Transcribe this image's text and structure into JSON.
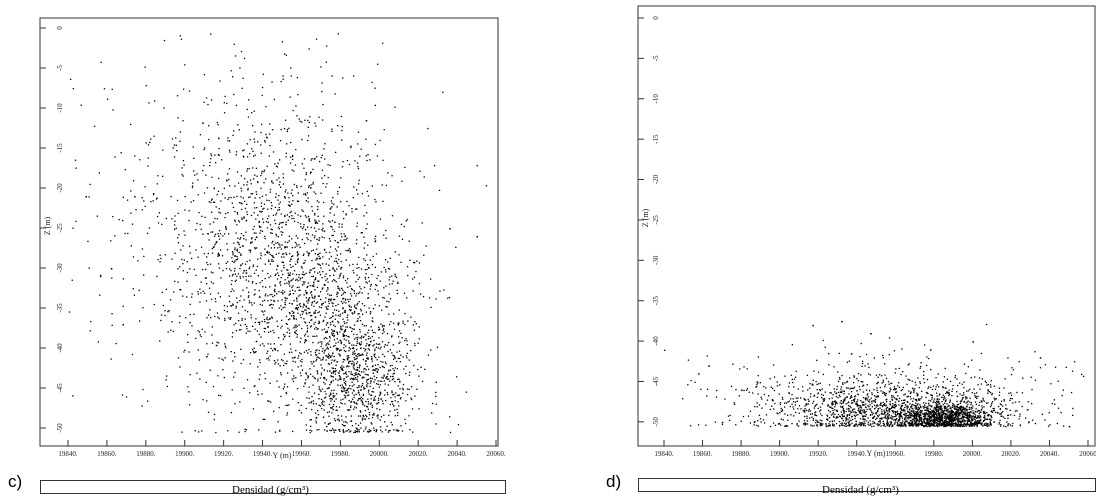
{
  "panels": [
    {
      "label": "c)",
      "colorbar_label": "Densidad (g/cm³)"
    },
    {
      "label": "d)",
      "colorbar_label": "Densidad (g/cm³)"
    }
  ],
  "chart_data": [
    {
      "type": "scatter",
      "xlabel": "Y (m)",
      "ylabel": "Z (m)",
      "xlim": [
        19840,
        20060
      ],
      "ylim": [
        -52,
        0
      ],
      "xticks": [
        19840,
        19860,
        19880,
        19900,
        19920,
        19940,
        19960,
        19980,
        20000,
        20020,
        20040,
        20060
      ],
      "xtick_labels": [
        "19840.",
        "19860.",
        "19880.",
        "19900.",
        "19920.",
        "19940.",
        "19960.",
        "19980.",
        "20000.",
        "20020.",
        "20040.",
        "20060."
      ],
      "yticks": [
        0,
        -5,
        -10,
        -15,
        -20,
        -25,
        -30,
        -35,
        -40,
        -45,
        -50
      ],
      "ytick_labels": [
        "0",
        "-5",
        "-10",
        "-15",
        "-20",
        "-25",
        "-30",
        "-35",
        "-40",
        "-45",
        "-50"
      ],
      "point_color": "#000000",
      "clusters": [
        {
          "center": [
            19945,
            -28
          ],
          "spread": [
            28,
            9
          ],
          "count": 1100
        },
        {
          "center": [
            19990,
            -44
          ],
          "spread": [
            14,
            4
          ],
          "count": 700
        },
        {
          "center": [
            19975,
            -36
          ],
          "spread": [
            22,
            7
          ],
          "count": 900
        },
        {
          "center": [
            19930,
            -25
          ],
          "spread": [
            45,
            12
          ],
          "count": 500
        }
      ],
      "points": [
        [
          19993,
          -11.5
        ],
        [
          19909,
          -11.8
        ],
        [
          19874,
          -21
        ],
        [
          19951,
          -21
        ],
        [
          19862,
          -30
        ],
        [
          19849,
          -21
        ],
        [
          20036,
          -25
        ],
        [
          20050,
          -26
        ],
        [
          19868,
          -37
        ],
        [
          19911,
          -41
        ]
      ]
    },
    {
      "type": "scatter",
      "xlabel": "Y (m)",
      "ylabel": "Z (m)",
      "xlim": [
        19840,
        20060
      ],
      "ylim": [
        -52,
        0
      ],
      "xticks": [
        19840,
        19860,
        19880,
        19900,
        19920,
        19940,
        19960,
        19980,
        20000,
        20020,
        20040,
        20060
      ],
      "xtick_labels": [
        "19840.",
        "19860.",
        "19880.",
        "19900.",
        "19920.",
        "19940.",
        "19960.",
        "19980.",
        "20000.",
        "20020.",
        "20040.",
        "20060"
      ],
      "yticks": [
        0,
        -5,
        -10,
        -15,
        -20,
        -25,
        -30,
        -35,
        -40,
        -45,
        -50
      ],
      "ytick_labels": [
        "0",
        "-5",
        "-10",
        "-15",
        "-20",
        "-25",
        "-30",
        "-35",
        "-40",
        "-45",
        "-50"
      ],
      "point_color": "#000000",
      "clusters": [
        {
          "center": [
            19985,
            -49.5
          ],
          "spread": [
            12,
            0.8
          ],
          "count": 900
        },
        {
          "center": [
            19960,
            -48.5
          ],
          "spread": [
            32,
            1.6
          ],
          "count": 1200
        },
        {
          "center": [
            19950,
            -46.5
          ],
          "spread": [
            45,
            2.8
          ],
          "count": 500
        }
      ],
      "points": [
        [
          19863,
          -43
        ],
        [
          19917,
          -38
        ],
        [
          19947,
          -39
        ],
        [
          19937,
          -41.5
        ],
        [
          19978,
          -41
        ],
        [
          19932,
          -37.5
        ],
        [
          20000,
          -40
        ],
        [
          20035,
          -42
        ],
        [
          20050,
          -50.5
        ],
        [
          19880,
          -46
        ],
        [
          19870,
          -50
        ]
      ]
    }
  ]
}
